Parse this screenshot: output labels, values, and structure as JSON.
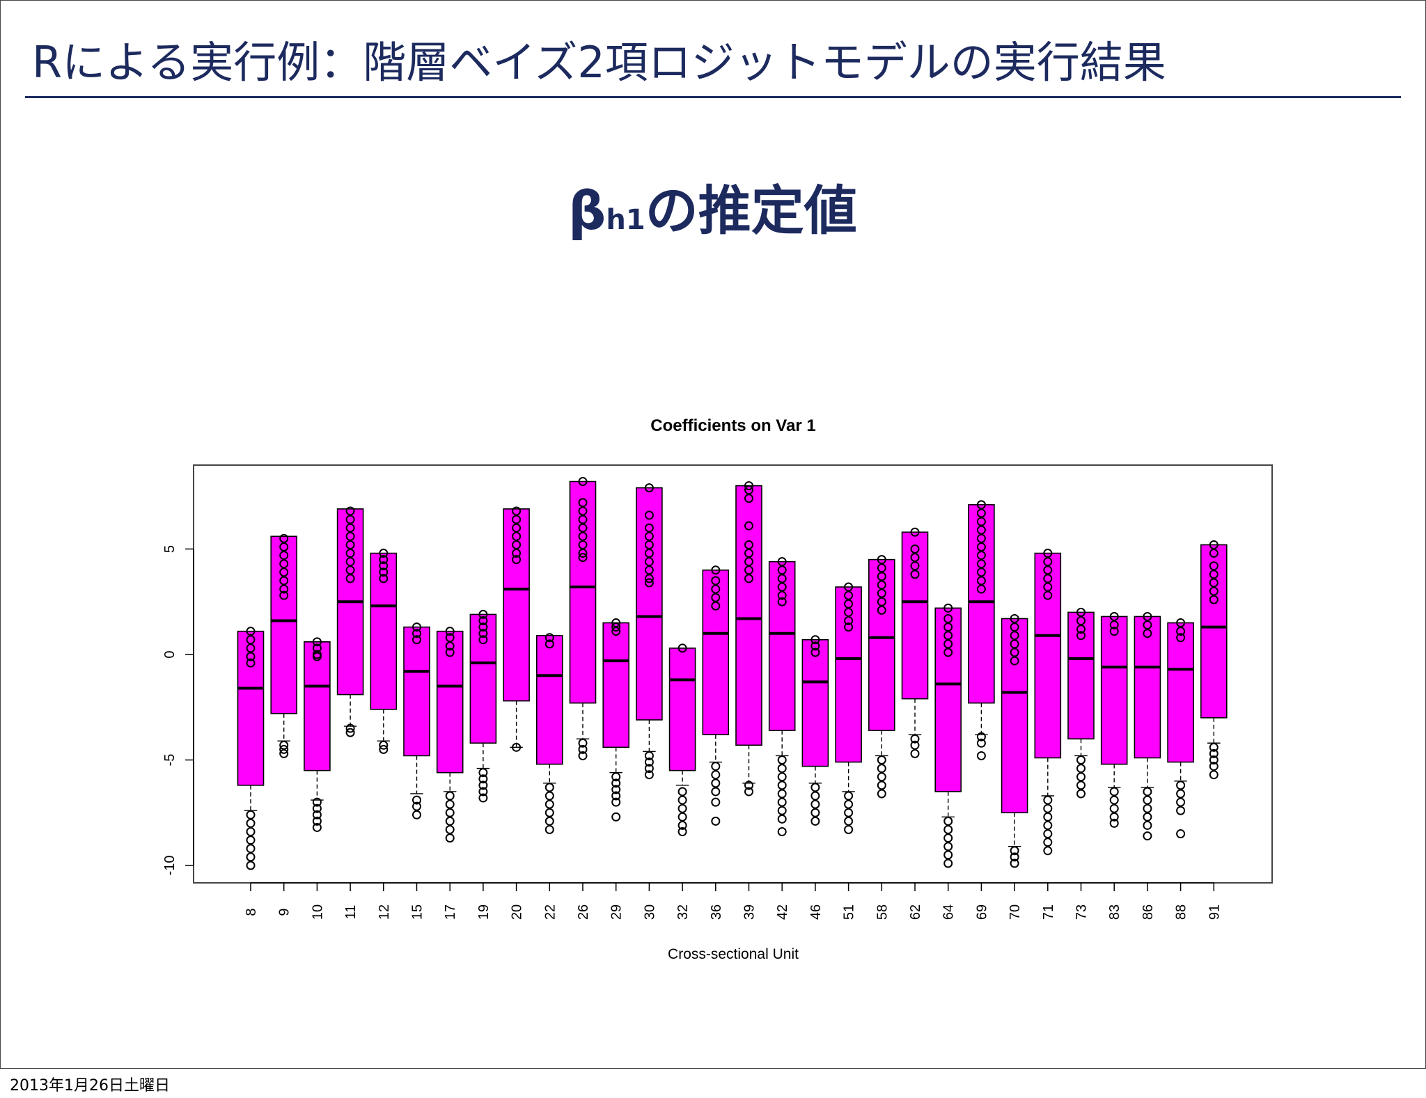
{
  "slide": {
    "title": "Rによる実行例：階層ベイズ2項ロジットモデルの実行結果",
    "subtitle_beta": "β",
    "subtitle_sub": "h1",
    "subtitle_rest": "の推定値",
    "footer_date": "2013年1月26日土曜日",
    "title_color": "#1c2a5e"
  },
  "chart_data": {
    "type": "boxplot",
    "title": "Coefficients on Var 1",
    "xlabel": "Cross-sectional Unit",
    "ylabel": "",
    "ylim": [
      -10.5,
      8.6
    ],
    "yticks": [
      -10,
      -5,
      0,
      5
    ],
    "box_color": "#ff00ff",
    "categories": [
      "8",
      "9",
      "10",
      "11",
      "12",
      "15",
      "17",
      "19",
      "20",
      "22",
      "26",
      "29",
      "30",
      "32",
      "36",
      "39",
      "42",
      "46",
      "51",
      "58",
      "62",
      "64",
      "69",
      "70",
      "71",
      "73",
      "83",
      "86",
      "88",
      "91"
    ],
    "boxes": [
      {
        "unit": "8",
        "q1": -6.2,
        "median": -1.6,
        "q3": 1.1,
        "whisker_low": -7.4,
        "whisker_high": 1.1,
        "outliers_low": [
          -7.6,
          -8.0,
          -8.4,
          -8.8,
          -9.2,
          -9.6,
          -10.0
        ],
        "outliers_high": [
          1.1,
          0.7,
          0.3,
          -0.1,
          -0.4
        ]
      },
      {
        "unit": "9",
        "q1": -2.8,
        "median": 1.6,
        "q3": 5.6,
        "whisker_low": -4.1,
        "whisker_high": 5.6,
        "outliers_low": [
          -4.3,
          -4.5,
          -4.7
        ],
        "outliers_high": [
          5.5,
          5.1,
          4.7,
          4.3,
          3.9,
          3.5,
          3.1,
          2.8
        ]
      },
      {
        "unit": "10",
        "q1": -5.5,
        "median": -1.5,
        "q3": 0.6,
        "whisker_low": -6.9,
        "whisker_high": 0.6,
        "outliers_low": [
          -7.0,
          -7.3,
          -7.6,
          -7.9,
          -8.2
        ],
        "outliers_high": [
          0.6,
          0.3,
          0.0,
          -0.1
        ]
      },
      {
        "unit": "11",
        "q1": -1.9,
        "median": 2.5,
        "q3": 6.9,
        "whisker_low": -3.4,
        "whisker_high": 6.9,
        "outliers_low": [
          -3.5,
          -3.7
        ],
        "outliers_high": [
          6.8,
          6.4,
          6.0,
          5.6,
          5.2,
          4.8,
          4.4,
          4.0,
          3.6
        ]
      },
      {
        "unit": "12",
        "q1": -2.6,
        "median": 2.3,
        "q3": 4.8,
        "whisker_low": -4.1,
        "whisker_high": 4.8,
        "outliers_low": [
          -4.3,
          -4.5
        ],
        "outliers_high": [
          4.8,
          4.5,
          4.2,
          3.9,
          3.6
        ]
      },
      {
        "unit": "15",
        "q1": -4.8,
        "median": -0.8,
        "q3": 1.3,
        "whisker_low": -6.6,
        "whisker_high": 1.3,
        "outliers_low": [
          -6.9,
          -7.2,
          -7.6
        ],
        "outliers_high": [
          1.3,
          1.0,
          0.7
        ]
      },
      {
        "unit": "17",
        "q1": -5.6,
        "median": -1.5,
        "q3": 1.1,
        "whisker_low": -6.5,
        "whisker_high": 1.1,
        "outliers_low": [
          -6.7,
          -7.1,
          -7.5,
          -7.9,
          -8.3,
          -8.7
        ],
        "outliers_high": [
          1.1,
          0.8,
          0.4,
          0.1
        ]
      },
      {
        "unit": "19",
        "q1": -4.2,
        "median": -0.4,
        "q3": 1.9,
        "whisker_low": -5.4,
        "whisker_high": 1.9,
        "outliers_low": [
          -5.6,
          -5.9,
          -6.2,
          -6.5,
          -6.8
        ],
        "outliers_high": [
          1.9,
          1.6,
          1.3,
          1.0,
          0.7
        ]
      },
      {
        "unit": "20",
        "q1": -2.2,
        "median": 3.1,
        "q3": 6.9,
        "whisker_low": -4.4,
        "whisker_high": 6.9,
        "outliers_low": [
          -4.4
        ],
        "outliers_high": [
          6.8,
          6.4,
          6.0,
          5.6,
          5.2,
          4.8,
          4.5
        ]
      },
      {
        "unit": "22",
        "q1": -5.2,
        "median": -1.0,
        "q3": 0.9,
        "whisker_low": -6.1,
        "whisker_high": 0.9,
        "outliers_low": [
          -6.3,
          -6.7,
          -7.1,
          -7.5,
          -7.9,
          -8.3
        ],
        "outliers_high": [
          0.8,
          0.5
        ]
      },
      {
        "unit": "26",
        "q1": -2.3,
        "median": 3.2,
        "q3": 8.2,
        "whisker_low": -4.0,
        "whisker_high": 8.2,
        "outliers_low": [
          -4.2,
          -4.5,
          -4.8
        ],
        "outliers_high": [
          8.2,
          7.2,
          6.8,
          6.4,
          6.0,
          5.6,
          5.2,
          4.8,
          4.6
        ]
      },
      {
        "unit": "29",
        "q1": -4.4,
        "median": -0.3,
        "q3": 1.5,
        "whisker_low": -5.6,
        "whisker_high": 1.5,
        "outliers_low": [
          -5.8,
          -6.1,
          -6.4,
          -6.7,
          -7.0,
          -7.7
        ],
        "outliers_high": [
          1.5,
          1.3,
          1.1
        ]
      },
      {
        "unit": "30",
        "q1": -3.1,
        "median": 1.8,
        "q3": 7.9,
        "whisker_low": -4.6,
        "whisker_high": 7.9,
        "outliers_low": [
          -4.8,
          -5.1,
          -5.4,
          -5.7
        ],
        "outliers_high": [
          7.9,
          6.6,
          6.0,
          5.6,
          5.2,
          4.8,
          4.4,
          4.0,
          3.6,
          3.4
        ]
      },
      {
        "unit": "32",
        "q1": -5.5,
        "median": -1.2,
        "q3": 0.3,
        "whisker_low": -6.2,
        "whisker_high": 0.3,
        "outliers_low": [
          -6.5,
          -6.9,
          -7.3,
          -7.7,
          -8.1,
          -8.4
        ],
        "outliers_high": [
          0.3
        ]
      },
      {
        "unit": "36",
        "q1": -3.8,
        "median": 1.0,
        "q3": 4.0,
        "whisker_low": -5.1,
        "whisker_high": 4.0,
        "outliers_low": [
          -5.3,
          -5.7,
          -6.1,
          -6.5,
          -7.0,
          -7.9
        ],
        "outliers_high": [
          4.0,
          3.5,
          3.1,
          2.7,
          2.3
        ]
      },
      {
        "unit": "39",
        "q1": -4.3,
        "median": 1.7,
        "q3": 8.0,
        "whisker_low": -6.1,
        "whisker_high": 8.0,
        "outliers_low": [
          -6.2,
          -6.5
        ],
        "outliers_high": [
          8.0,
          7.8,
          7.4,
          6.1,
          5.2,
          4.8,
          4.4,
          4.0,
          3.6
        ]
      },
      {
        "unit": "42",
        "q1": -3.6,
        "median": 1.0,
        "q3": 4.4,
        "whisker_low": -4.8,
        "whisker_high": 4.4,
        "outliers_low": [
          -5.0,
          -5.4,
          -5.8,
          -6.2,
          -6.6,
          -7.0,
          -7.4,
          -7.8,
          -8.4
        ],
        "outliers_high": [
          4.4,
          4.0,
          3.6,
          3.2,
          2.8,
          2.5
        ]
      },
      {
        "unit": "46",
        "q1": -5.3,
        "median": -1.3,
        "q3": 0.7,
        "whisker_low": -6.1,
        "whisker_high": 0.7,
        "outliers_low": [
          -6.3,
          -6.7,
          -7.1,
          -7.5,
          -7.9
        ],
        "outliers_high": [
          0.7,
          0.4,
          0.1
        ]
      },
      {
        "unit": "51",
        "q1": -5.1,
        "median": -0.2,
        "q3": 3.2,
        "whisker_low": -6.5,
        "whisker_high": 3.2,
        "outliers_low": [
          -6.7,
          -7.1,
          -7.5,
          -7.9,
          -8.3
        ],
        "outliers_high": [
          3.2,
          2.8,
          2.4,
          2.0,
          1.6,
          1.3
        ]
      },
      {
        "unit": "58",
        "q1": -3.6,
        "median": 0.8,
        "q3": 4.5,
        "whisker_low": -4.8,
        "whisker_high": 4.5,
        "outliers_low": [
          -5.0,
          -5.4,
          -5.8,
          -6.2,
          -6.6
        ],
        "outliers_high": [
          4.5,
          4.1,
          3.7,
          3.3,
          2.9,
          2.5,
          2.1
        ]
      },
      {
        "unit": "62",
        "q1": -2.1,
        "median": 2.5,
        "q3": 5.8,
        "whisker_low": -3.8,
        "whisker_high": 5.8,
        "outliers_low": [
          -4.0,
          -4.3,
          -4.7
        ],
        "outliers_high": [
          5.8,
          5.0,
          4.6,
          4.2,
          3.8
        ]
      },
      {
        "unit": "64",
        "q1": -6.5,
        "median": -1.4,
        "q3": 2.2,
        "whisker_low": -7.7,
        "whisker_high": 2.2,
        "outliers_low": [
          -7.9,
          -8.3,
          -8.7,
          -9.1,
          -9.5,
          -9.9
        ],
        "outliers_high": [
          2.2,
          1.7,
          1.3,
          0.9,
          0.5,
          0.1
        ]
      },
      {
        "unit": "69",
        "q1": -2.3,
        "median": 2.5,
        "q3": 7.1,
        "whisker_low": -3.8,
        "whisker_high": 7.1,
        "outliers_low": [
          -3.9,
          -4.2,
          -4.8
        ],
        "outliers_high": [
          7.1,
          6.7,
          6.3,
          5.9,
          5.5,
          5.1,
          4.7,
          4.3,
          3.9,
          3.5,
          3.1
        ]
      },
      {
        "unit": "70",
        "q1": -7.5,
        "median": -1.8,
        "q3": 1.7,
        "whisker_low": -9.1,
        "whisker_high": 1.7,
        "outliers_low": [
          -9.3,
          -9.6,
          -9.9
        ],
        "outliers_high": [
          1.7,
          1.3,
          0.9,
          0.5,
          0.1,
          -0.3
        ]
      },
      {
        "unit": "71",
        "q1": -4.9,
        "median": 0.9,
        "q3": 4.8,
        "whisker_low": -6.7,
        "whisker_high": 4.8,
        "outliers_low": [
          -6.9,
          -7.3,
          -7.7,
          -8.1,
          -8.5,
          -8.9,
          -9.3
        ],
        "outliers_high": [
          4.8,
          4.4,
          4.0,
          3.6,
          3.2,
          2.8
        ]
      },
      {
        "unit": "73",
        "q1": -4.0,
        "median": -0.2,
        "q3": 2.0,
        "whisker_low": -4.8,
        "whisker_high": 2.0,
        "outliers_low": [
          -5.0,
          -5.4,
          -5.8,
          -6.2,
          -6.6
        ],
        "outliers_high": [
          2.0,
          1.6,
          1.2,
          0.9
        ]
      },
      {
        "unit": "83",
        "q1": -5.2,
        "median": -0.6,
        "q3": 1.8,
        "whisker_low": -6.3,
        "whisker_high": 1.8,
        "outliers_low": [
          -6.5,
          -6.9,
          -7.3,
          -7.7,
          -8.0
        ],
        "outliers_high": [
          1.8,
          1.4,
          1.1
        ]
      },
      {
        "unit": "86",
        "q1": -4.9,
        "median": -0.6,
        "q3": 1.8,
        "whisker_low": -6.3,
        "whisker_high": 1.8,
        "outliers_low": [
          -6.5,
          -6.9,
          -7.3,
          -7.7,
          -8.1,
          -8.6
        ],
        "outliers_high": [
          1.8,
          1.4,
          1.0
        ]
      },
      {
        "unit": "88",
        "q1": -5.1,
        "median": -0.7,
        "q3": 1.5,
        "whisker_low": -6.0,
        "whisker_high": 1.5,
        "outliers_low": [
          -6.2,
          -6.6,
          -7.0,
          -7.4,
          -8.5
        ],
        "outliers_high": [
          1.5,
          1.1,
          0.8
        ]
      },
      {
        "unit": "91",
        "q1": -3.0,
        "median": 1.3,
        "q3": 5.2,
        "whisker_low": -4.2,
        "whisker_high": 5.2,
        "outliers_low": [
          -4.4,
          -4.7,
          -5.0,
          -5.3,
          -5.7
        ],
        "outliers_high": [
          5.2,
          4.8,
          4.2,
          3.8,
          3.4,
          3.0,
          2.6
        ]
      }
    ]
  }
}
